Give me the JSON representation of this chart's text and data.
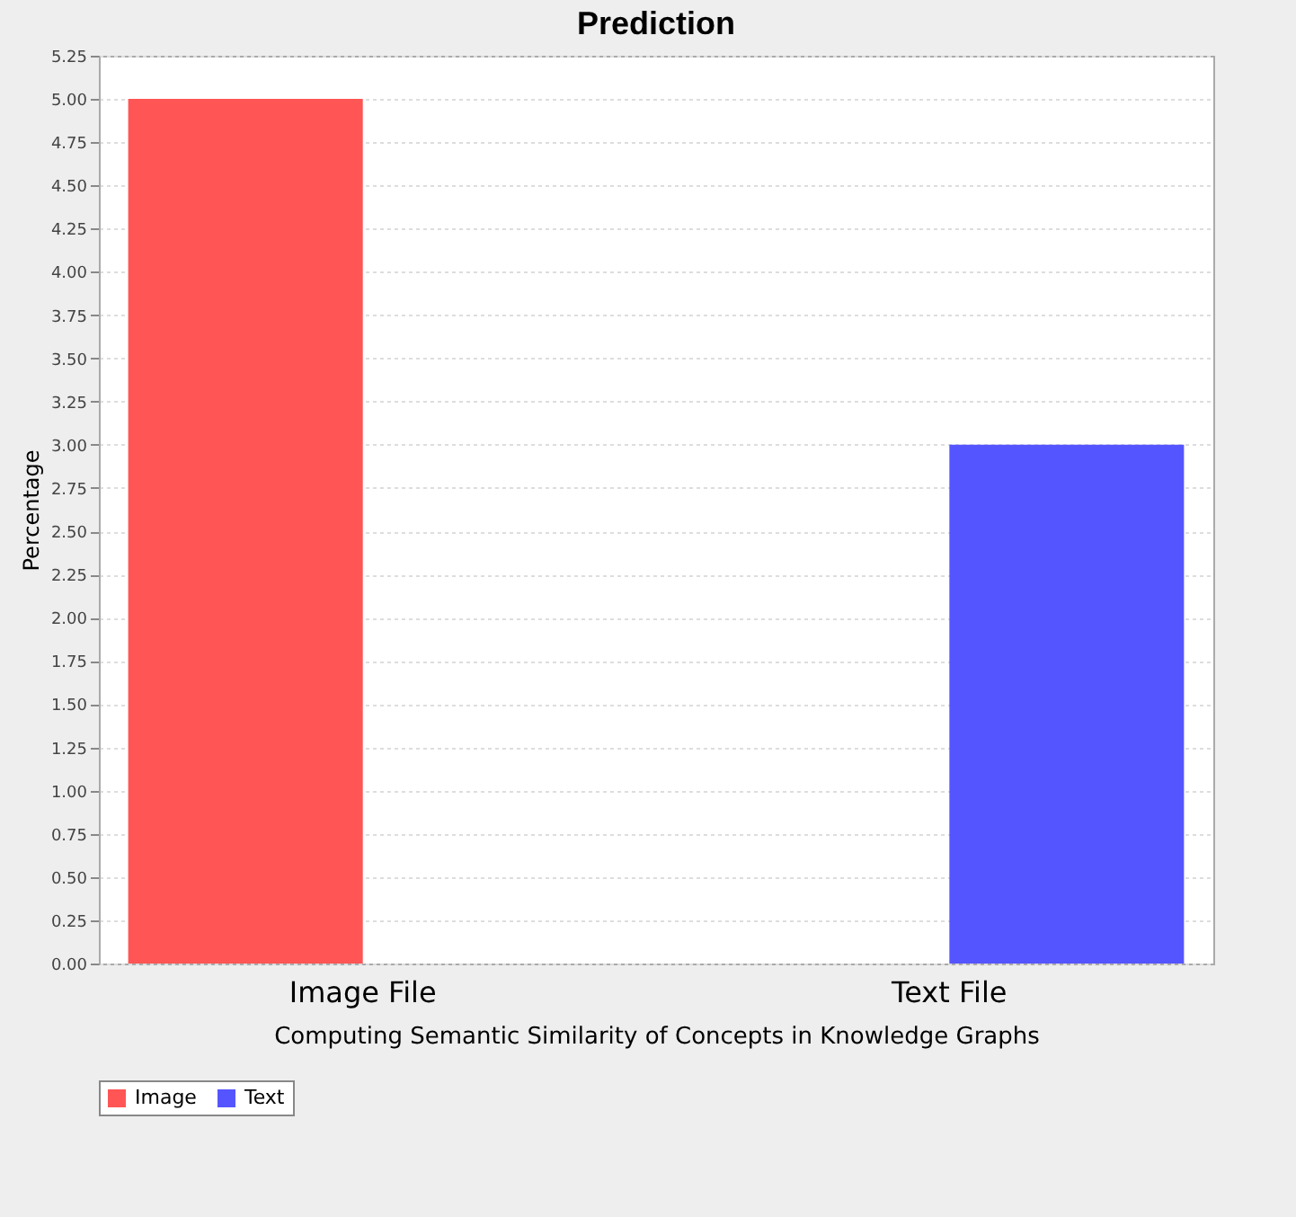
{
  "chart_data": {
    "type": "bar",
    "title": "Prediction",
    "xlabel": "Computing Semantic Similarity of Concepts in Knowledge Graphs",
    "ylabel": "Percentage",
    "categories": [
      "Image File",
      "Text File"
    ],
    "series": [
      {
        "name": "Image",
        "color": "#ff5555",
        "values": [
          5,
          null
        ]
      },
      {
        "name": "Text",
        "color": "#5555ff",
        "values": [
          null,
          3
        ]
      }
    ],
    "ylim": [
      0,
      5.25
    ],
    "yticks": [
      {
        "value": 0,
        "label": "0.00"
      },
      {
        "value": 0.25,
        "label": "0.25"
      },
      {
        "value": 0.5,
        "label": "0.50"
      },
      {
        "value": 0.75,
        "label": "0.75"
      },
      {
        "value": 1,
        "label": "1.00"
      },
      {
        "value": 1.25,
        "label": "1.25"
      },
      {
        "value": 1.5,
        "label": "1.50"
      },
      {
        "value": 1.75,
        "label": "1.75"
      },
      {
        "value": 2,
        "label": "2.00"
      },
      {
        "value": 2.25,
        "label": "2.25"
      },
      {
        "value": 2.5,
        "label": "2.50"
      },
      {
        "value": 2.75,
        "label": "2.75"
      },
      {
        "value": 3,
        "label": "3.00"
      },
      {
        "value": 3.25,
        "label": "3.25"
      },
      {
        "value": 3.5,
        "label": "3.50"
      },
      {
        "value": 3.75,
        "label": "3.75"
      },
      {
        "value": 4,
        "label": "4.00"
      },
      {
        "value": 4.25,
        "label": "4.25"
      },
      {
        "value": 4.5,
        "label": "4.50"
      },
      {
        "value": 4.75,
        "label": "4.75"
      },
      {
        "value": 5,
        "label": "5.00"
      },
      {
        "value": 5.25,
        "label": "5.25"
      }
    ],
    "grid": "y",
    "legend": "bottom"
  }
}
